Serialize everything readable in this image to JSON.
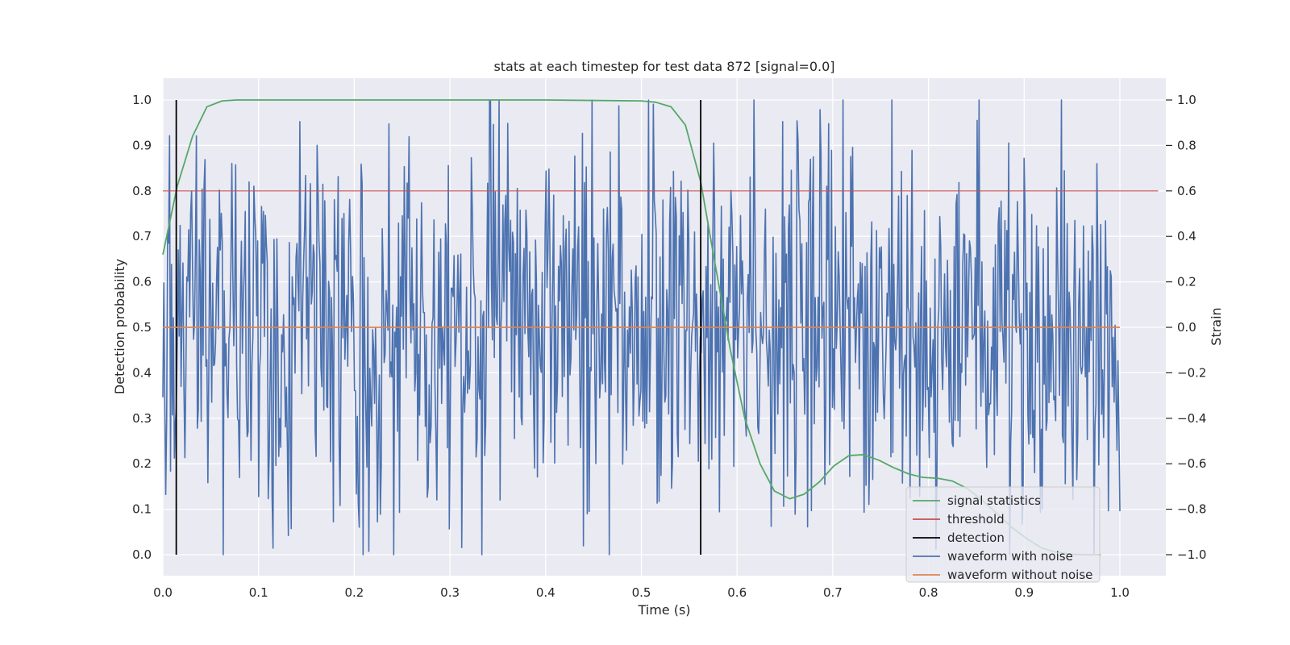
{
  "chart_data": {
    "type": "line",
    "title": "stats at each timestep for test data 872 [signal=0.0]",
    "xlabel": "Time (s)",
    "ylabel": "Detection probability",
    "y2label": "Strain",
    "xlim": [
      0.0,
      1.05
    ],
    "ylim": [
      -0.05,
      1.05
    ],
    "y2lim": [
      -1.1,
      1.1
    ],
    "xticks": [
      "0.0",
      "0.1",
      "0.2",
      "0.3",
      "0.4",
      "0.5",
      "0.6",
      "0.7",
      "0.8",
      "0.9",
      "1.0"
    ],
    "yticks": [
      "0.0",
      "0.1",
      "0.2",
      "0.3",
      "0.4",
      "0.5",
      "0.6",
      "0.7",
      "0.8",
      "0.9",
      "1.0"
    ],
    "y2ticks": [
      "−1.0",
      "−0.8",
      "−0.6",
      "−0.4",
      "−0.2",
      "0.0",
      "0.2",
      "0.4",
      "0.6",
      "0.8",
      "1.0"
    ],
    "grid": true,
    "legend_position": "bottom-right",
    "colors": {
      "signal_statistics": "#55a868",
      "threshold": "#c44e52",
      "detection": "#000000",
      "waveform_with_noise": "#4c72b0",
      "waveform_without_noise": "#dd8452",
      "axes_background": "#eaeaf2",
      "grid": "#ffffff"
    },
    "series": [
      {
        "name": "signal statistics",
        "axis": "left",
        "x": [
          0.0,
          0.015,
          0.031,
          0.046,
          0.062,
          0.077,
          0.1,
          0.2,
          0.3,
          0.4,
          0.5,
          0.515,
          0.531,
          0.546,
          0.562,
          0.577,
          0.593,
          0.608,
          0.624,
          0.639,
          0.655,
          0.67,
          0.686,
          0.701,
          0.717,
          0.732,
          0.748,
          0.763,
          0.779,
          0.794,
          0.81,
          0.825,
          0.841,
          0.856,
          0.872,
          0.887,
          0.903,
          0.918,
          0.934,
          0.949,
          0.965,
          0.98
        ],
        "y": [
          0.66,
          0.81,
          0.92,
          0.985,
          0.998,
          1.0,
          1.0,
          1.0,
          1.0,
          1.0,
          0.998,
          0.995,
          0.985,
          0.945,
          0.82,
          0.64,
          0.45,
          0.3,
          0.2,
          0.14,
          0.123,
          0.133,
          0.16,
          0.195,
          0.218,
          0.22,
          0.208,
          0.192,
          0.178,
          0.17,
          0.168,
          0.162,
          0.145,
          0.12,
          0.09,
          0.06,
          0.035,
          0.015,
          0.005,
          0.001,
          0.0,
          0.0
        ]
      },
      {
        "name": "threshold",
        "axis": "left",
        "x": [
          0.0,
          1.04
        ],
        "y": [
          0.8,
          0.8
        ]
      },
      {
        "name": "detection",
        "axis": "left",
        "x": [
          0.014,
          0.562
        ],
        "y": [
          0.0,
          1.0
        ]
      },
      {
        "name": "waveform with noise",
        "axis": "right",
        "x_range": [
          0.0,
          1.0
        ],
        "n_points": 1000,
        "y_range": [
          -1.0,
          1.0
        ]
      },
      {
        "name": "waveform without noise",
        "axis": "right",
        "x": [
          0.0,
          1.0
        ],
        "y": [
          0.0,
          0.0
        ]
      }
    ]
  }
}
